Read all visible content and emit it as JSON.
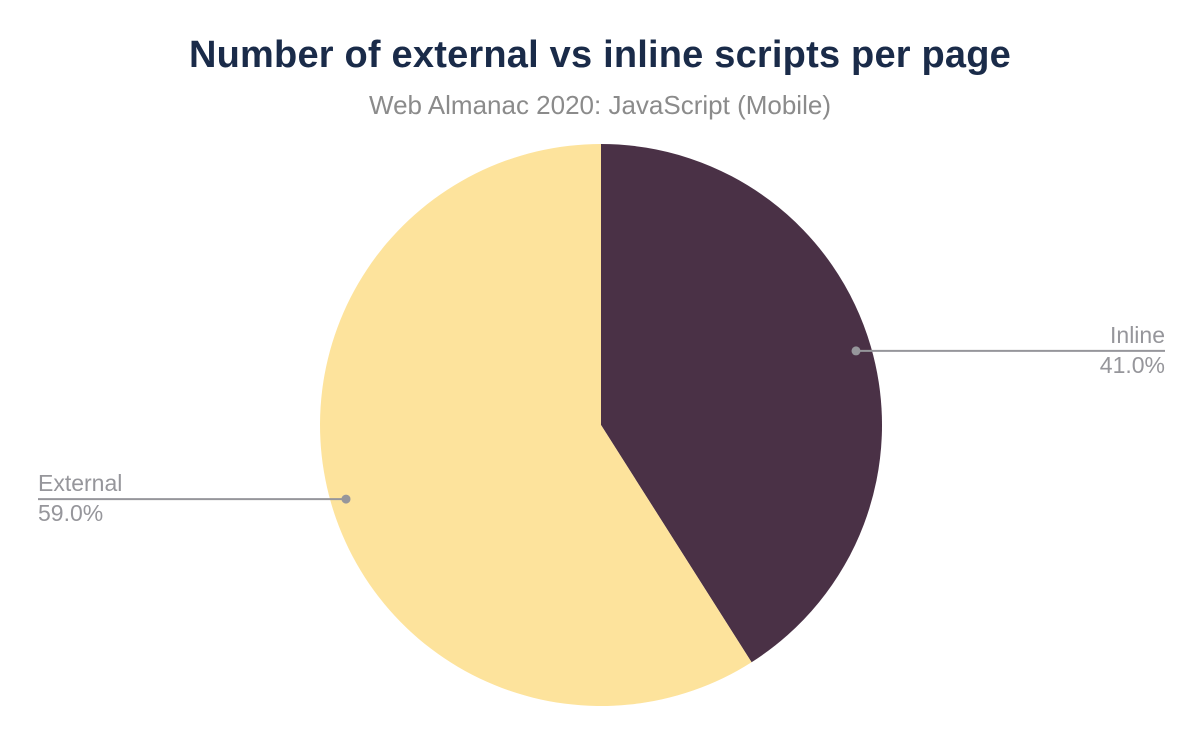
{
  "page": {
    "background_color": "#ffffff"
  },
  "header": {
    "title": "Number of external vs inline scripts per page",
    "subtitle": "Web Almanac 2020: JavaScript (Mobile)",
    "title_color": "#1a2b49",
    "subtitle_color": "#8b8b8b"
  },
  "chart_data": {
    "type": "pie",
    "title": "Number of external vs inline scripts per page",
    "subtitle": "Web Almanac 2020: JavaScript (Mobile)",
    "unit": "%",
    "start_angle_deg": 0,
    "direction": "clockwise",
    "total": 100,
    "slices": [
      {
        "label": "Inline",
        "value": 41.0,
        "display": "41.0%",
        "color": "#4a3146",
        "label_side": "right"
      },
      {
        "label": "External",
        "value": 59.0,
        "display": "59.0%",
        "color": "#fde39c",
        "label_side": "left"
      }
    ],
    "callouts": {
      "text_color": "#96969b",
      "leader_line_color": "#96969b",
      "dot_color": "#96969b"
    },
    "legend_position": "none",
    "grid": false
  }
}
